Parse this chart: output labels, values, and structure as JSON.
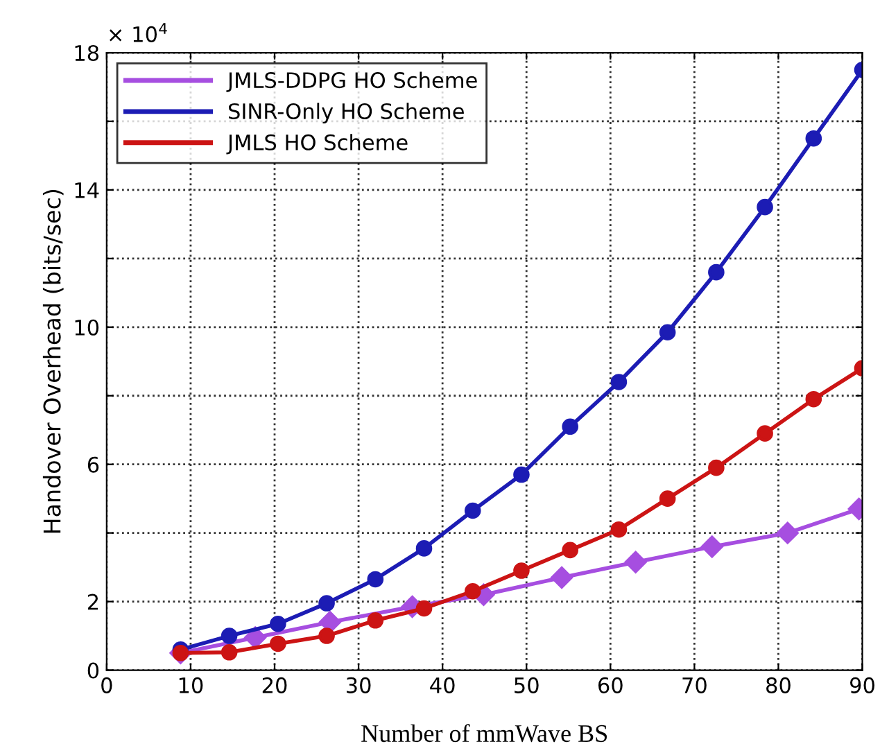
{
  "chart_data": {
    "type": "line",
    "xlabel": "Number of mmWave BS",
    "ylabel": "Handover Overhead (bits/sec)",
    "annotations": [
      "× 10$^{4}$"
    ],
    "xlim": [
      0,
      90
    ],
    "xticks": [
      0,
      10,
      20,
      30,
      40,
      50,
      60,
      70,
      80,
      90
    ],
    "ylim": [
      0,
      18
    ],
    "yticks": [
      0,
      2,
      {
        "value": 4,
        "label": null
      },
      6,
      {
        "value": 8,
        "label": null
      },
      10,
      {
        "value": 12,
        "label": null
      },
      14,
      {
        "value": 16,
        "label": null
      },
      18
    ],
    "grid": true,
    "legend": "top left",
    "line_style": "solid",
    "series": [
      {
        "name": "JMLS-DDPG HO Scheme",
        "color": "#a64ee0",
        "marker": "diamond",
        "x": [
          8.8,
          17.7,
          26.6,
          36.4,
          44.9,
          54.2,
          63.0,
          72.1,
          81.1,
          89.6
        ],
        "values": [
          0.5,
          0.95,
          1.4,
          1.85,
          2.2,
          2.7,
          3.15,
          3.6,
          4.0,
          4.7
        ]
      },
      {
        "name": "SINR-Only HO Scheme",
        "color": "#1c1cb4",
        "marker": "circle",
        "x": [
          8.8,
          14.6,
          20.4,
          26.2,
          32.0,
          37.8,
          43.6,
          49.4,
          55.2,
          61.0,
          66.8,
          72.6,
          78.4,
          84.2,
          90.0
        ],
        "values": [
          0.6,
          1.0,
          1.35,
          1.95,
          2.65,
          3.55,
          4.65,
          5.7,
          7.1,
          8.4,
          9.85,
          11.6,
          13.5,
          15.5,
          17.5
        ]
      },
      {
        "name": "JMLS HO Scheme",
        "color": "#cc1414",
        "marker": "circle",
        "x": [
          8.8,
          14.6,
          20.4,
          26.2,
          32.0,
          37.8,
          43.6,
          49.4,
          55.2,
          61.0,
          66.8,
          72.6,
          78.4,
          84.2,
          90.0
        ],
        "values": [
          0.5,
          0.52,
          0.77,
          1.0,
          1.45,
          1.8,
          2.3,
          2.9,
          3.5,
          4.1,
          5.0,
          5.9,
          6.9,
          7.9,
          8.8
        ]
      }
    ]
  }
}
